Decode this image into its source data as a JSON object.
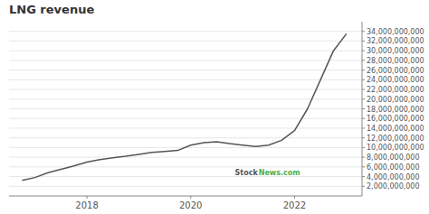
{
  "chart_data": {
    "type": "line",
    "title": "LNG revenue",
    "color": "#555555",
    "grid": true,
    "x": [
      2016.75,
      2017.0,
      2017.25,
      2017.5,
      2017.75,
      2018.0,
      2018.25,
      2018.5,
      2018.75,
      2019.0,
      2019.25,
      2019.5,
      2019.75,
      2020.0,
      2020.25,
      2020.5,
      2020.75,
      2021.0,
      2021.25,
      2021.5,
      2021.75,
      2022.0,
      2022.25,
      2022.5,
      2022.75,
      2023.0
    ],
    "values": [
      3200000000,
      3800000000,
      4800000000,
      5500000000,
      6200000000,
      7000000000,
      7500000000,
      7900000000,
      8200000000,
      8600000000,
      9000000000,
      9200000000,
      9400000000,
      10500000000,
      11000000000,
      11200000000,
      10800000000,
      10500000000,
      10200000000,
      10500000000,
      11500000000,
      13500000000,
      18000000000,
      24000000000,
      30000000000,
      33500000000
    ],
    "xlim": [
      2016.5,
      2023.3
    ],
    "xticks": [
      2018,
      2020,
      2022
    ],
    "ylim": [
      0,
      36000000000
    ],
    "yticks": [
      {
        "value": 2000000000,
        "label": "2,000,000,000"
      },
      {
        "value": 4000000000,
        "label": "4,000,000,000"
      },
      {
        "value": 6000000000,
        "label": "6,000,000,000"
      },
      {
        "value": 8000000000,
        "label": "8,000,000,000"
      },
      {
        "value": 10000000000,
        "label": "10,000,000,000"
      },
      {
        "value": 12000000000,
        "label": "12,000,000,000"
      },
      {
        "value": 14000000000,
        "label": "14,000,000,000"
      },
      {
        "value": 16000000000,
        "label": "16,000,000,000"
      },
      {
        "value": 18000000000,
        "label": "18,000,000,000"
      },
      {
        "value": 20000000000,
        "label": "20,000,000,000"
      },
      {
        "value": 22000000000,
        "label": "22,000,000,000"
      },
      {
        "value": 24000000000,
        "label": "24,000,000,000"
      },
      {
        "value": 26000000000,
        "label": "26,000,000,000"
      },
      {
        "value": 28000000000,
        "label": "28,000,000,000"
      },
      {
        "value": 30000000000,
        "label": "30,000,000,000"
      },
      {
        "value": 32000000000,
        "label": "32,000,000,000"
      },
      {
        "value": 34000000000,
        "label": "34,000,000,000"
      }
    ],
    "annotations": [
      {
        "text": "Stock",
        "color": "#555555"
      },
      {
        "text": "News.com",
        "color": "#4caf50"
      }
    ]
  }
}
